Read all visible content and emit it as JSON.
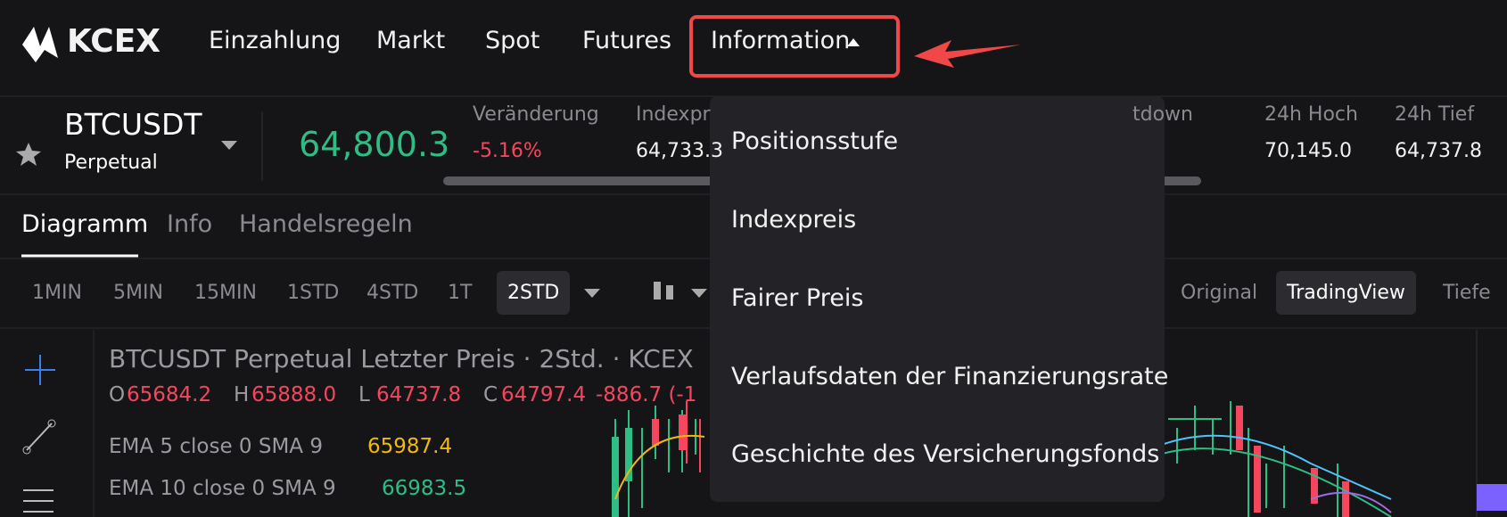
{
  "nav": {
    "logo": "KCEX",
    "items": [
      "Einzahlung",
      "Markt",
      "Spot",
      "Futures",
      "Information"
    ]
  },
  "ticker": {
    "symbol": "BTCUSDT",
    "contract": "Perpetual",
    "price": "64,800.3",
    "stats": [
      {
        "label": "Veränderung",
        "value": "-5.16%"
      },
      {
        "label": "Indexpr",
        "value": "64,733.3"
      },
      {
        "label": "tdown",
        "value": ""
      },
      {
        "label": "24h Hoch",
        "value": "70,145.0"
      },
      {
        "label": "24h Tief",
        "value": "64,737.8"
      }
    ]
  },
  "tabs": [
    "Diagramm",
    "Info",
    "Handelsregeln"
  ],
  "intervals": [
    "1MIN",
    "5MIN",
    "15MIN",
    "1STD",
    "4STD",
    "1T",
    "2STD"
  ],
  "views": [
    "Original",
    "TradingView",
    "Tiefe"
  ],
  "chart": {
    "title": "BTCUSDT Perpetual Letzter Preis · 2Std. · KCEX",
    "ohlc": [
      {
        "k": "O",
        "v": "65684.2"
      },
      {
        "k": "H",
        "v": "65888.0"
      },
      {
        "k": "L",
        "v": "64737.8"
      },
      {
        "k": "C",
        "v": "64797.4"
      }
    ],
    "change": "-886.7 (-1",
    "indicators": [
      {
        "label": "EMA 5 close 0 SMA 9",
        "value": "65987.4",
        "color": "#f0b90b"
      },
      {
        "label": "EMA 10 close 0 SMA 9",
        "value": "66983.5",
        "color": "#2ebd85"
      }
    ]
  },
  "menu": [
    "Positionsstufe",
    "Indexpreis",
    "Fairer Preis",
    "Verlaufsdaten der Finanzierungsrate",
    "Geschichte des Versicherungsfonds"
  ]
}
